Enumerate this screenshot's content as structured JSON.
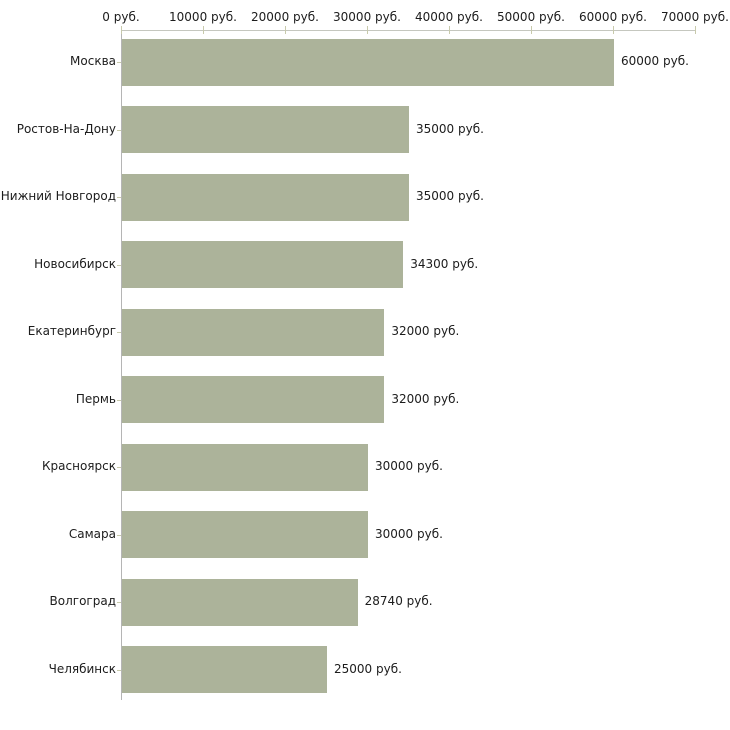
{
  "chart_data": {
    "type": "bar",
    "orientation": "horizontal",
    "title": "",
    "xlabel": "",
    "ylabel": "",
    "categories": [
      "Москва",
      "Ростов-На-Дону",
      "Нижний Новгород",
      "Новосибирск",
      "Екатеринбург",
      "Пермь",
      "Красноярск",
      "Самара",
      "Волгоград",
      "Челябинск"
    ],
    "values": [
      60000,
      35000,
      35000,
      34300,
      32000,
      32000,
      30000,
      30000,
      28740,
      25000
    ],
    "value_labels": [
      "60000 руб.",
      "35000 руб.",
      "35000 руб.",
      "34300 руб.",
      "32000 руб.",
      "32000 руб.",
      "30000 руб.",
      "30000 руб.",
      "28740 руб.",
      "25000 руб."
    ],
    "x_ticks": [
      0,
      10000,
      20000,
      30000,
      40000,
      50000,
      60000,
      70000
    ],
    "x_tick_labels": [
      "0 руб.",
      "10000 руб.",
      "20000 руб.",
      "30000 руб.",
      "40000 руб.",
      "50000 руб.",
      "60000 руб.",
      "70000 руб."
    ],
    "xlim": [
      0,
      70000
    ],
    "grid": false,
    "legend_position": "none",
    "bar_color": "#acb39a",
    "axis_line_color": "#c5c7bf",
    "y_axis_line_color": "#b5b5b5",
    "tick_mark_color": "#c8caac",
    "text_color": "#1c1c1c",
    "background_color": "#ffffff"
  }
}
